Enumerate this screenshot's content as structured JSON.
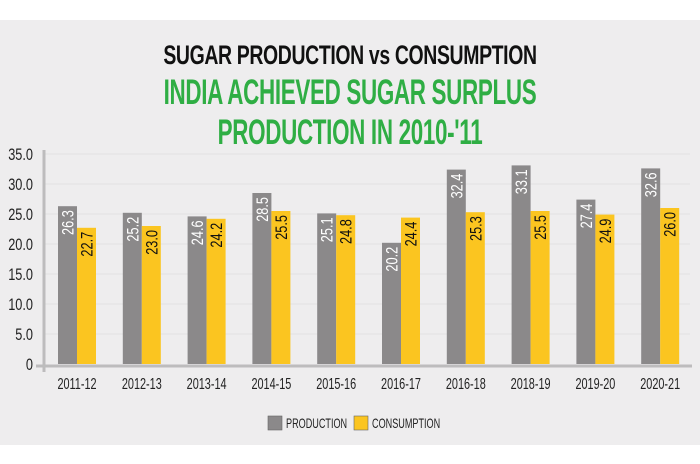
{
  "chart_data": {
    "type": "bar",
    "title": "SUGAR PRODUCTION vs CONSUMPTION",
    "subtitle": "INDIA ACHIEVED SUGAR SURPLUS PRODUCTION IN 2010-'11",
    "xlabel": "",
    "ylabel": "",
    "ylim": [
      0,
      35
    ],
    "yticks": [
      "0",
      "5.0",
      "10.0",
      "15.0",
      "20.0",
      "25.0",
      "30.0",
      "35.0"
    ],
    "grid": true,
    "legend_position": "bottom-center",
    "categories": [
      "2011-12",
      "2012-13",
      "2013-14",
      "2014-15",
      "2015-16",
      "2016-17",
      "2016-18",
      "2018-19",
      "2019-20",
      "2020-21"
    ],
    "series": [
      {
        "name": "PRODUCTION",
        "color": "#8b898a",
        "values": [
          26.3,
          25.2,
          24.6,
          28.5,
          25.1,
          20.2,
          32.4,
          33.1,
          27.4,
          32.6
        ],
        "labels": [
          "26.3",
          "25.2",
          "24.6",
          "28.5",
          "25.1",
          "20.2",
          "32.4",
          "33.1",
          "27.4",
          "32.6"
        ]
      },
      {
        "name": "CONSUMPTION",
        "color": "#fbc520",
        "values": [
          22.7,
          23.0,
          24.2,
          25.5,
          24.8,
          24.4,
          25.3,
          25.5,
          24.9,
          26.0
        ],
        "labels": [
          "22.7",
          "23.0",
          "24.2",
          "25.5",
          "24.8",
          "24.4",
          "25.3",
          "25.5",
          "24.9",
          "26.0"
        ]
      }
    ]
  }
}
